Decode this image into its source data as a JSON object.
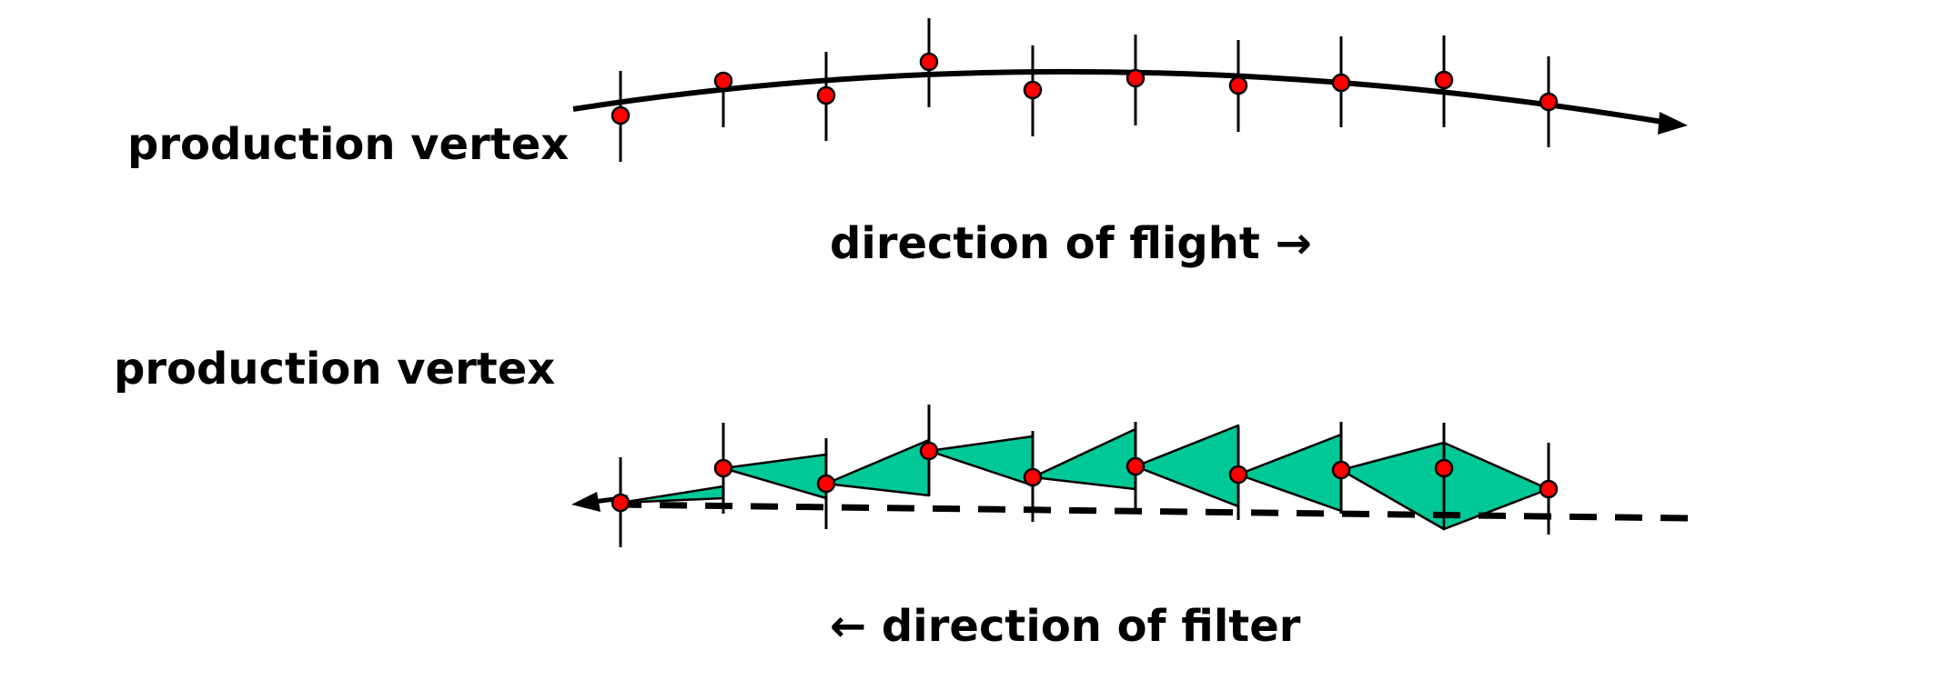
{
  "panels": {
    "top": {
      "vertex_label": "production vertex",
      "direction_label": "direction of flight →"
    },
    "bottom": {
      "vertex_label": "production vertex",
      "direction_label": "← direction of filter"
    }
  },
  "colors": {
    "hit": "#ff0000",
    "filter_cone": "#00c896",
    "line": "#000000"
  }
}
